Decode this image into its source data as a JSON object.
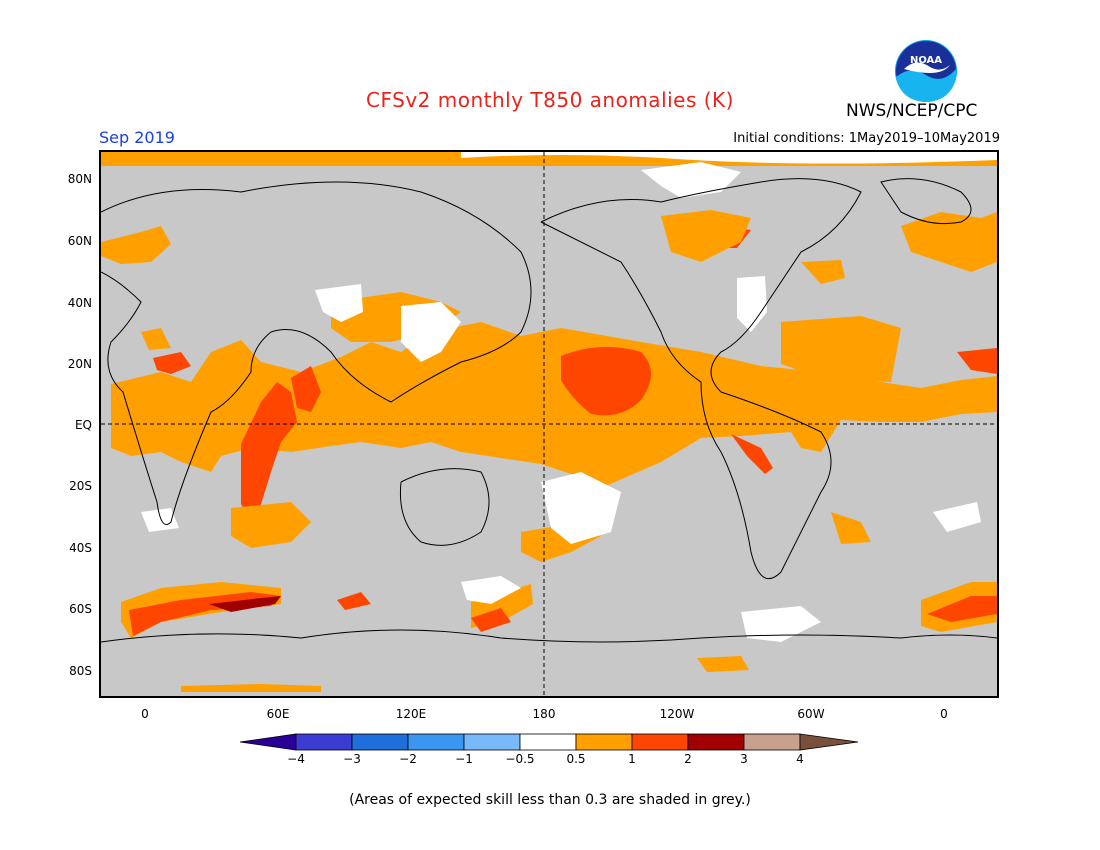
{
  "header": {
    "title": "CFSv2 monthly T850 anomalies (K)",
    "org": "NWS/NCEP/CPC",
    "logo_text": "NOAA",
    "period": "Sep 2019",
    "initial_conditions": "Initial conditions: 1May2019–10May2019"
  },
  "map": {
    "lat_labels": [
      "80N",
      "60N",
      "40N",
      "20N",
      "EQ",
      "20S",
      "40S",
      "60S",
      "80S"
    ],
    "lon_labels": [
      "0",
      "60E",
      "120E",
      "180",
      "120W",
      "60W",
      "0"
    ],
    "colors": {
      "grey_mask": "#c8c8c8",
      "ocean_white": "#ffffff",
      "anom_0_5_1": "#ffa000",
      "anom_1_2": "#ff4600",
      "anom_2_3": "#a00000",
      "coast": "#000000"
    }
  },
  "colorbar": {
    "labels": [
      "−4",
      "−3",
      "−2",
      "−1",
      "−0.5",
      "0.5",
      "1",
      "2",
      "3",
      "4"
    ],
    "colors": [
      "#280096",
      "#3c3cd2",
      "#1e6edc",
      "#3c96f0",
      "#78b9fa",
      "#ffffff",
      "#ffa000",
      "#ff4600",
      "#a00000",
      "#c8a08c",
      "#78503c"
    ]
  },
  "footnote": "(Areas of expected skill less than 0.3 are shaded in grey.)"
}
